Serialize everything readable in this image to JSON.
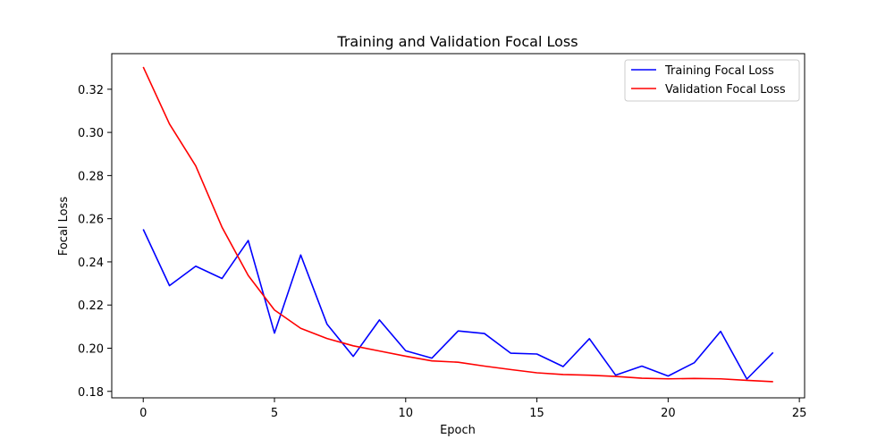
{
  "chart_data": {
    "type": "line",
    "title": "Training and Validation Focal Loss",
    "xlabel": "Epoch",
    "ylabel": "Focal Loss",
    "xlim": [
      -1.2,
      25.2
    ],
    "ylim": [
      0.177,
      0.3365
    ],
    "xticks": [
      0,
      5,
      10,
      15,
      20,
      25
    ],
    "xtick_labels": [
      "0",
      "5",
      "10",
      "15",
      "20",
      "25"
    ],
    "yticks": [
      0.18,
      0.2,
      0.22,
      0.24,
      0.26,
      0.28,
      0.3,
      0.32
    ],
    "ytick_labels": [
      "0.18",
      "0.20",
      "0.22",
      "0.24",
      "0.26",
      "0.28",
      "0.30",
      "0.32"
    ],
    "grid": false,
    "legend_position": "top-right",
    "x": [
      0,
      1,
      2,
      3,
      4,
      5,
      6,
      7,
      8,
      9,
      10,
      11,
      12,
      13,
      14,
      15,
      16,
      17,
      18,
      19,
      20,
      21,
      22,
      23,
      24
    ],
    "series": [
      {
        "name": "Training Focal Loss",
        "color": "#0000ff",
        "values": [
          0.2551,
          0.229,
          0.238,
          0.2323,
          0.2499,
          0.207,
          0.2432,
          0.2112,
          0.1962,
          0.2131,
          0.1988,
          0.1954,
          0.208,
          0.2068,
          0.1977,
          0.1973,
          0.1915,
          0.2044,
          0.1875,
          0.1917,
          0.1871,
          0.1933,
          0.2078,
          0.1857,
          0.198
        ]
      },
      {
        "name": "Validation Focal Loss",
        "color": "#ff0000",
        "values": [
          0.3303,
          0.3039,
          0.2845,
          0.2561,
          0.2337,
          0.2177,
          0.2092,
          0.2045,
          0.2011,
          0.1987,
          0.1963,
          0.1941,
          0.1935,
          0.1917,
          0.1901,
          0.1886,
          0.1878,
          0.1875,
          0.1869,
          0.1861,
          0.1858,
          0.186,
          0.1858,
          0.1851,
          0.1845
        ]
      }
    ]
  }
}
